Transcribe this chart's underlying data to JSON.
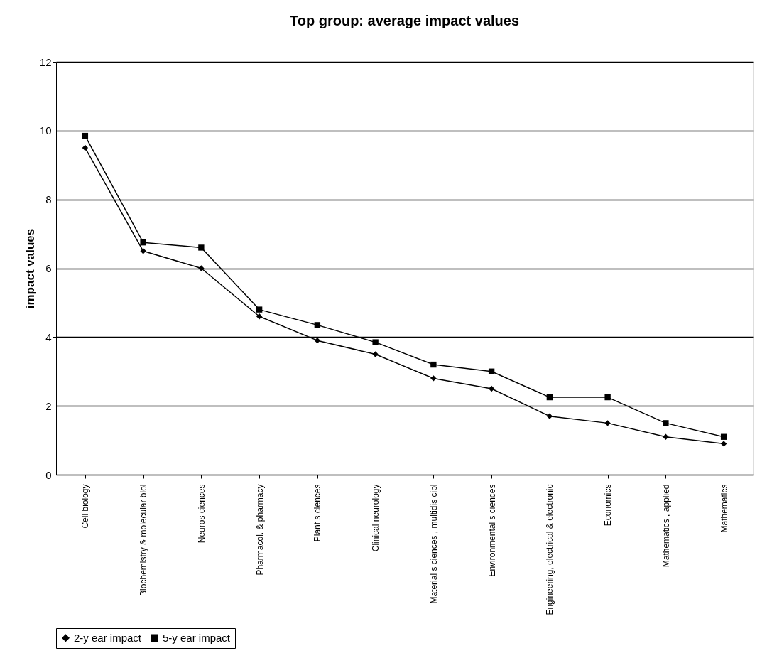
{
  "chart_data": {
    "type": "line",
    "title": "Top group: average impact values",
    "ylabel": "impact values",
    "categories": [
      "Cell biology",
      "Biochemistry & molecular biol",
      "Neuros ciences",
      "Pharmacol. & pharmacy",
      "Plant s ciences",
      "Clinical neurology",
      "Material s ciences , multidis cipl",
      "Environmental s ciences",
      "Engineering, electrical & electronic",
      "Economics",
      "Mathematics , applied",
      "Mathematics"
    ],
    "series": [
      {
        "name": "2-y ear impact",
        "color": "#000000",
        "marker": "diamond",
        "values": [
          9.5,
          6.5,
          6.0,
          4.6,
          3.9,
          3.5,
          2.8,
          2.5,
          1.7,
          1.5,
          1.1,
          0.9
        ]
      },
      {
        "name": "5-y ear impact",
        "color": "#000000",
        "marker": "square",
        "values": [
          9.85,
          6.75,
          6.6,
          4.8,
          4.35,
          3.85,
          3.2,
          3.0,
          2.25,
          2.25,
          1.5,
          1.1
        ]
      }
    ],
    "ylim": [
      0,
      12
    ],
    "yticks": [
      0,
      2,
      4,
      6,
      8,
      10,
      12
    ],
    "grid": "y",
    "legend": "bottom",
    "line_style": "solid"
  }
}
